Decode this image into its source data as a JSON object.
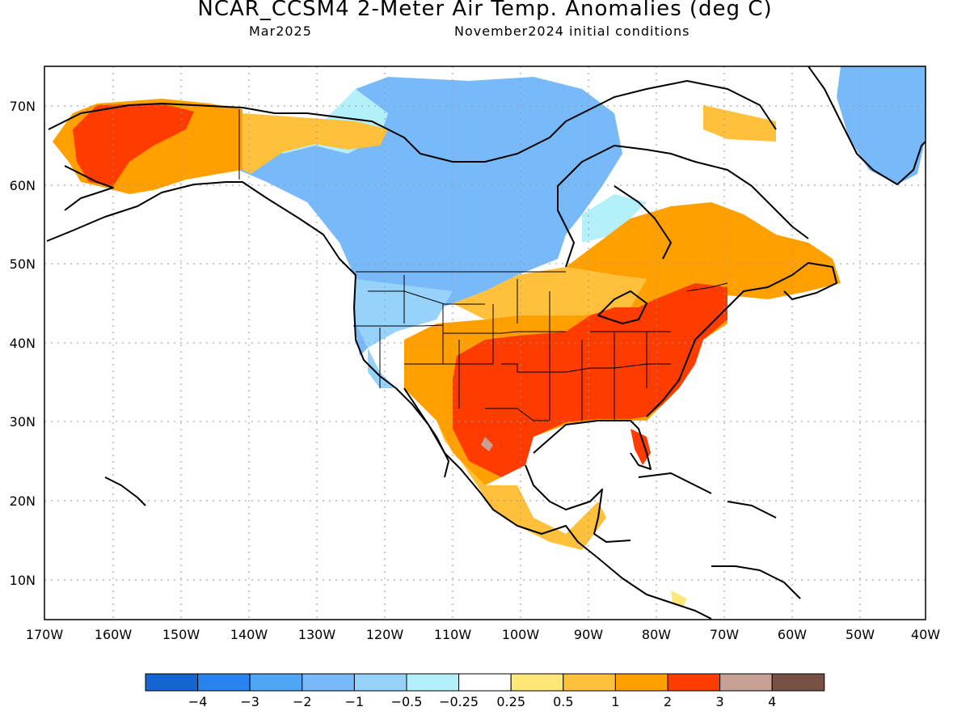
{
  "header": {
    "title": "NCAR_CCSM4 2-Meter Air Temp. Anomalies (deg C)",
    "valid_month": "Mar2025",
    "initial_conditions": "November2024 initial conditions"
  },
  "axes": {
    "lat_labels": [
      "70N",
      "60N",
      "50N",
      "40N",
      "30N",
      "20N",
      "10N"
    ],
    "lon_labels": [
      "170W",
      "160W",
      "150W",
      "140W",
      "130W",
      "120W",
      "110W",
      "100W",
      "90W",
      "80W",
      "70W",
      "60W",
      "50W",
      "40W"
    ]
  },
  "legend": {
    "bins": [
      {
        "color": "#1464d2"
      },
      {
        "color": "#2882f0"
      },
      {
        "color": "#50a5f5"
      },
      {
        "color": "#78b9fa"
      },
      {
        "color": "#96d2fa"
      },
      {
        "color": "#b4f0fa"
      },
      {
        "color": "#ffffff"
      },
      {
        "color": "#ffe878"
      },
      {
        "color": "#ffc03c"
      },
      {
        "color": "#ffa000"
      },
      {
        "color": "#ff3c00"
      },
      {
        "color": "#c8a096"
      },
      {
        "color": "#785046"
      }
    ],
    "labels": [
      "-4",
      "-3",
      "-2",
      "-1",
      "-0.5",
      "-0.25",
      "0.25",
      "0.5",
      "1",
      "2",
      "3",
      "4"
    ]
  }
}
